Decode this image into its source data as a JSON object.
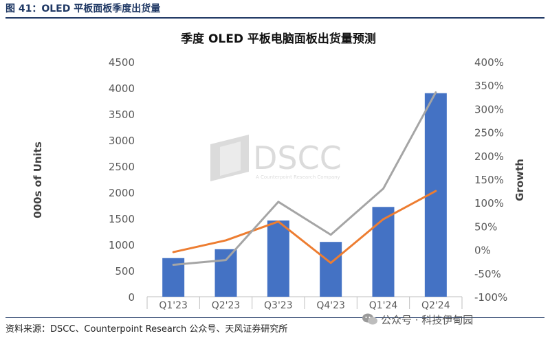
{
  "figure_title": "图 41：OLED 平板面板季度出货量",
  "source_text": "资料来源：DSCC、Counterpoint Research 公众号、天风证券研究所",
  "watermark": {
    "text": "公众号 · 科技伊甸园",
    "icon": "wechat-icon"
  },
  "logo": {
    "text": "DSCC",
    "subtext": "A Counterpoint Research Company"
  },
  "colors": {
    "bar": "#4472c4",
    "line_orange": "#ed7d31",
    "line_gray": "#a5a5a5",
    "rule": "#1f3864"
  },
  "chart_data": {
    "type": "bar",
    "title": "季度 OLED 平板电脑面板出货量预测",
    "categories": [
      "Q1'23",
      "Q2'23",
      "Q3'23",
      "Q4'23",
      "Q1'24",
      "Q2'24"
    ],
    "ylabel": "000s of Units",
    "y2label": "Growth",
    "ylim": [
      0,
      4500
    ],
    "y2lim": [
      -100,
      400
    ],
    "yticks": [
      0,
      500,
      1000,
      1500,
      2000,
      2500,
      3000,
      3500,
      4000,
      4500
    ],
    "y2ticks": [
      -100,
      -50,
      0,
      50,
      100,
      150,
      200,
      250,
      300,
      350,
      400
    ],
    "y2tick_suffix": "%",
    "legend": "none",
    "grid": false,
    "series": [
      {
        "kind": "bar",
        "axis": "left",
        "values": [
          740,
          910,
          1460,
          1050,
          1720,
          3900
        ]
      },
      {
        "kind": "line",
        "axis": "right",
        "color": "#ed7d31",
        "values": [
          -5,
          20,
          60,
          -28,
          65,
          125
        ]
      },
      {
        "kind": "line",
        "axis": "right",
        "color": "#a5a5a5",
        "values": [
          -32,
          -22,
          102,
          32,
          130,
          335
        ]
      }
    ]
  }
}
